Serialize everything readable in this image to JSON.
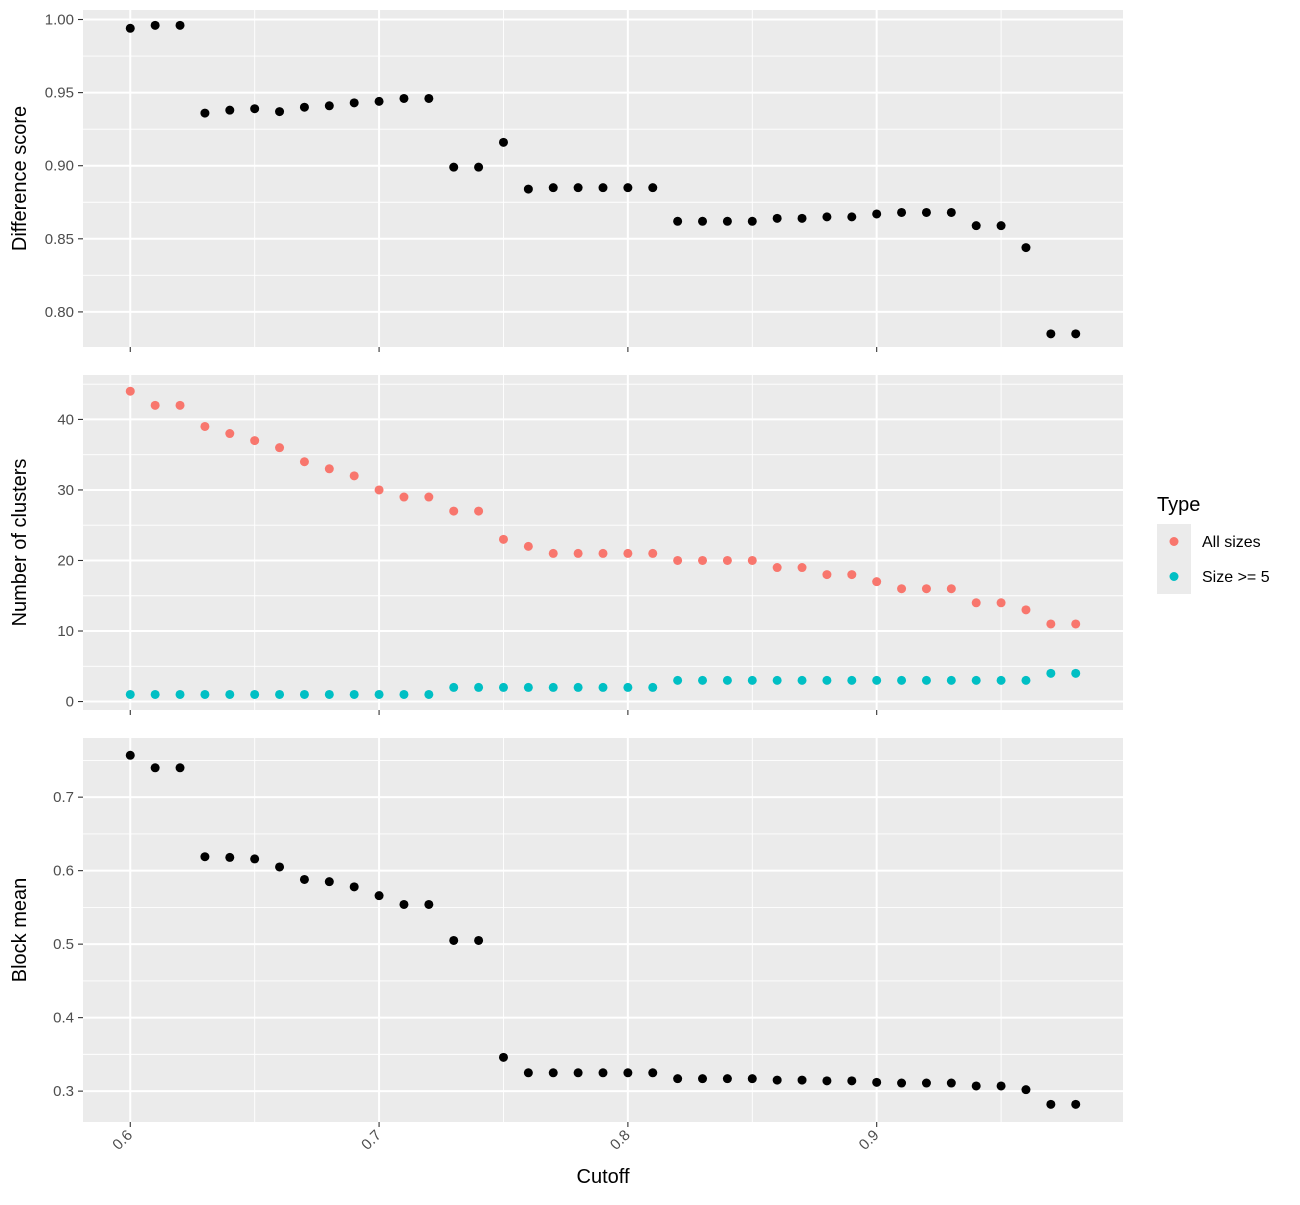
{
  "chart_data": [
    {
      "type": "scatter",
      "panel": "top",
      "title": "",
      "xlabel": "",
      "ylabel": "Difference score",
      "xlim": [
        0.581,
        0.999
      ],
      "ylim": [
        0.776,
        1.0065
      ],
      "x_ticks": [
        "0.6",
        "0.7",
        "0.8",
        "0.9"
      ],
      "y_ticks": [
        {
          "value": 0.8,
          "label": "0.80"
        },
        {
          "value": 0.85,
          "label": "0.85"
        },
        {
          "value": 0.9,
          "label": "0.90"
        },
        {
          "value": 0.95,
          "label": "0.95"
        },
        {
          "value": 1.0,
          "label": "1.00"
        }
      ],
      "x_labels_visible": false,
      "grid": true,
      "series": [
        {
          "color": "#000000",
          "x": [
            0.6,
            0.61,
            0.62,
            0.63,
            0.64,
            0.65,
            0.66,
            0.67,
            0.68,
            0.69,
            0.7,
            0.71,
            0.72,
            0.73,
            0.74,
            0.75,
            0.76,
            0.77,
            0.78,
            0.79,
            0.8,
            0.81,
            0.82,
            0.83,
            0.84,
            0.85,
            0.86,
            0.87,
            0.88,
            0.89,
            0.9,
            0.91,
            0.92,
            0.93,
            0.94,
            0.95,
            0.96,
            0.97,
            0.98
          ],
          "y": [
            0.994,
            0.996,
            0.996,
            0.936,
            0.938,
            0.939,
            0.937,
            0.94,
            0.941,
            0.943,
            0.944,
            0.946,
            0.946,
            0.899,
            0.899,
            0.916,
            0.884,
            0.885,
            0.885,
            0.885,
            0.885,
            0.885,
            0.862,
            0.862,
            0.862,
            0.862,
            0.864,
            0.864,
            0.865,
            0.865,
            0.867,
            0.868,
            0.868,
            0.868,
            0.859,
            0.859,
            0.844,
            0.785,
            0.785
          ]
        }
      ]
    },
    {
      "type": "scatter",
      "panel": "middle",
      "title": "",
      "xlabel": "",
      "ylabel": "Number of clusters",
      "xlim": [
        0.581,
        0.999
      ],
      "ylim": [
        -1.2,
        46.3
      ],
      "x_ticks": [
        "0.6",
        "0.7",
        "0.8",
        "0.9"
      ],
      "y_ticks": [
        {
          "value": 0,
          "label": "0"
        },
        {
          "value": 10,
          "label": "10"
        },
        {
          "value": 20,
          "label": "20"
        },
        {
          "value": 30,
          "label": "30"
        },
        {
          "value": 40,
          "label": "40"
        }
      ],
      "x_labels_visible": false,
      "grid": true,
      "legend": {
        "title": "Type",
        "placement": "right",
        "entries": [
          {
            "name": "All sizes",
            "color": "#F8766D"
          },
          {
            "name": "Size >= 5",
            "color": "#00BFC4"
          }
        ]
      },
      "series": [
        {
          "name": "All sizes",
          "color": "#F8766D",
          "x": [
            0.6,
            0.61,
            0.62,
            0.63,
            0.64,
            0.65,
            0.66,
            0.67,
            0.68,
            0.69,
            0.7,
            0.71,
            0.72,
            0.73,
            0.74,
            0.75,
            0.76,
            0.77,
            0.78,
            0.79,
            0.8,
            0.81,
            0.82,
            0.83,
            0.84,
            0.85,
            0.86,
            0.87,
            0.88,
            0.89,
            0.9,
            0.91,
            0.92,
            0.93,
            0.94,
            0.95,
            0.96,
            0.97,
            0.98
          ],
          "y": [
            44,
            42,
            42,
            39,
            38,
            37,
            36,
            34,
            33,
            32,
            30,
            29,
            29,
            27,
            27,
            23,
            22,
            21,
            21,
            21,
            21,
            21,
            20,
            20,
            20,
            20,
            19,
            19,
            18,
            18,
            17,
            16,
            16,
            16,
            14,
            14,
            13,
            11,
            11
          ]
        },
        {
          "name": "Size >= 5",
          "color": "#00BFC4",
          "x": [
            0.6,
            0.61,
            0.62,
            0.63,
            0.64,
            0.65,
            0.66,
            0.67,
            0.68,
            0.69,
            0.7,
            0.71,
            0.72,
            0.73,
            0.74,
            0.75,
            0.76,
            0.77,
            0.78,
            0.79,
            0.8,
            0.81,
            0.82,
            0.83,
            0.84,
            0.85,
            0.86,
            0.87,
            0.88,
            0.89,
            0.9,
            0.91,
            0.92,
            0.93,
            0.94,
            0.95,
            0.96,
            0.97,
            0.98
          ],
          "y": [
            1,
            1,
            1,
            1,
            1,
            1,
            1,
            1,
            1,
            1,
            1,
            1,
            1,
            2,
            2,
            2,
            2,
            2,
            2,
            2,
            2,
            2,
            3,
            3,
            3,
            3,
            3,
            3,
            3,
            3,
            3,
            3,
            3,
            3,
            3,
            3,
            3,
            4,
            4
          ]
        }
      ]
    },
    {
      "type": "scatter",
      "panel": "bottom",
      "title": "",
      "xlabel": "Cutoff",
      "ylabel": "Block mean",
      "xlim": [
        0.581,
        0.999
      ],
      "ylim": [
        0.258,
        0.7805
      ],
      "x_ticks": [
        "0.6",
        "0.7",
        "0.8",
        "0.9"
      ],
      "y_ticks": [
        {
          "value": 0.3,
          "label": "0.3"
        },
        {
          "value": 0.4,
          "label": "0.4"
        },
        {
          "value": 0.5,
          "label": "0.5"
        },
        {
          "value": 0.6,
          "label": "0.6"
        },
        {
          "value": 0.7,
          "label": "0.7"
        }
      ],
      "x_labels_visible": true,
      "grid": true,
      "series": [
        {
          "color": "#000000",
          "x": [
            0.6,
            0.61,
            0.62,
            0.63,
            0.64,
            0.65,
            0.66,
            0.67,
            0.68,
            0.69,
            0.7,
            0.71,
            0.72,
            0.73,
            0.74,
            0.75,
            0.76,
            0.77,
            0.78,
            0.79,
            0.8,
            0.81,
            0.82,
            0.83,
            0.84,
            0.85,
            0.86,
            0.87,
            0.88,
            0.89,
            0.9,
            0.91,
            0.92,
            0.93,
            0.94,
            0.95,
            0.96,
            0.97,
            0.98
          ],
          "y": [
            0.757,
            0.74,
            0.74,
            0.619,
            0.618,
            0.616,
            0.605,
            0.588,
            0.585,
            0.578,
            0.566,
            0.554,
            0.554,
            0.505,
            0.505,
            0.346,
            0.325,
            0.325,
            0.325,
            0.325,
            0.325,
            0.325,
            0.317,
            0.317,
            0.317,
            0.317,
            0.315,
            0.315,
            0.314,
            0.314,
            0.312,
            0.311,
            0.311,
            0.311,
            0.307,
            0.307,
            0.302,
            0.282,
            0.282
          ]
        }
      ]
    }
  ]
}
